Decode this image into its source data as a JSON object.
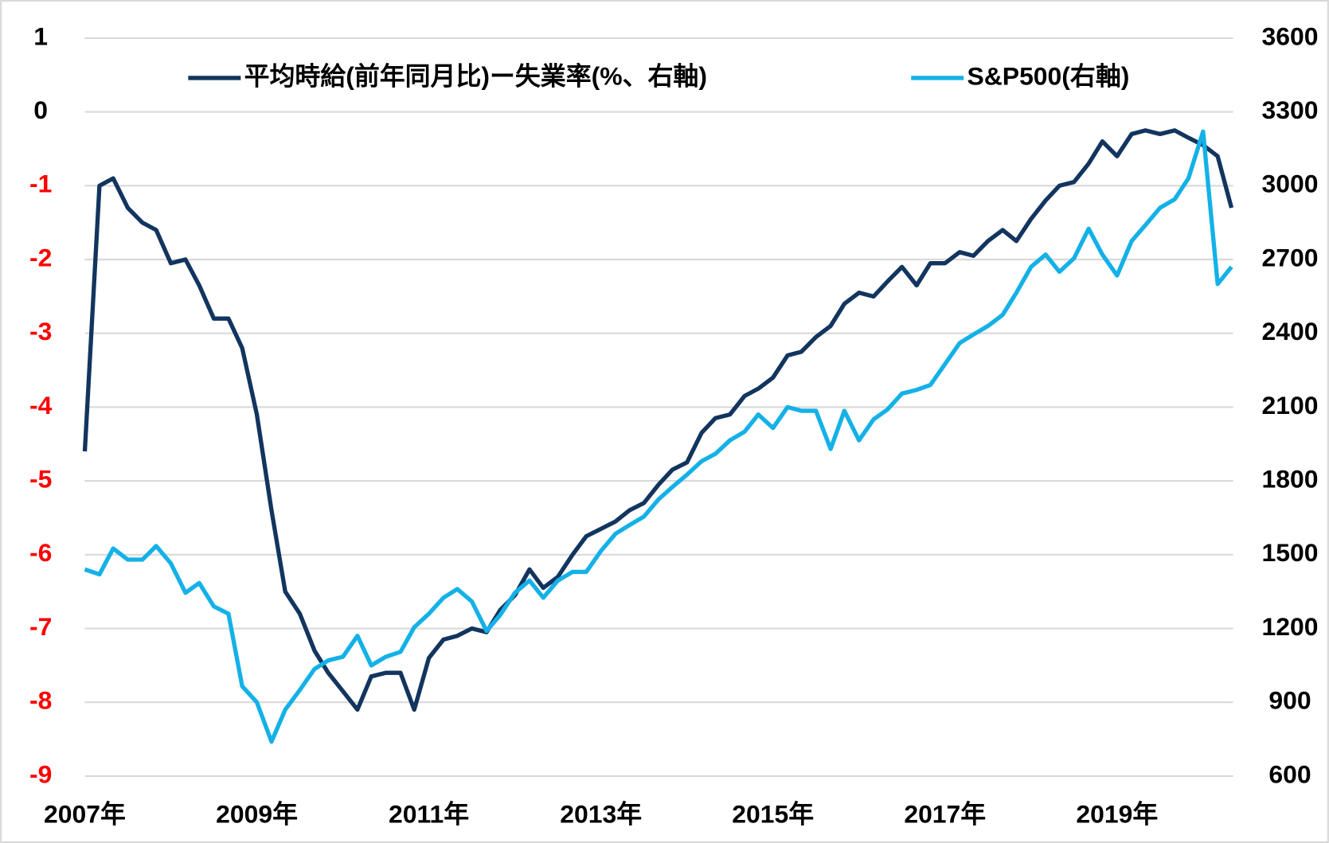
{
  "chart_data": {
    "type": "line",
    "x": [
      2007.0,
      2007.17,
      2007.33,
      2007.5,
      2007.67,
      2007.83,
      2008.0,
      2008.17,
      2008.33,
      2008.5,
      2008.67,
      2008.83,
      2009.0,
      2009.17,
      2009.33,
      2009.5,
      2009.67,
      2009.83,
      2010.0,
      2010.17,
      2010.33,
      2010.5,
      2010.67,
      2010.83,
      2011.0,
      2011.17,
      2011.33,
      2011.5,
      2011.67,
      2011.83,
      2012.0,
      2012.17,
      2012.33,
      2012.5,
      2012.67,
      2012.83,
      2013.0,
      2013.17,
      2013.33,
      2013.5,
      2013.67,
      2013.83,
      2014.0,
      2014.17,
      2014.33,
      2014.5,
      2014.67,
      2014.83,
      2015.0,
      2015.17,
      2015.33,
      2015.5,
      2015.67,
      2015.83,
      2016.0,
      2016.17,
      2016.33,
      2016.5,
      2016.67,
      2016.83,
      2017.0,
      2017.17,
      2017.33,
      2017.5,
      2017.67,
      2017.83,
      2018.0,
      2018.17,
      2018.33,
      2018.5,
      2018.67,
      2018.83,
      2019.0,
      2019.17,
      2019.33,
      2019.5,
      2019.67,
      2019.83,
      2020.0,
      2020.17,
      2020.33
    ],
    "series": [
      {
        "name": "平均時給(前年同月比)ー失業率(%、右軸)",
        "color": "#12355f",
        "values": [
          -4.6,
          -1.0,
          -0.9,
          -1.3,
          -1.5,
          -1.6,
          -2.05,
          -2.0,
          -2.35,
          -2.8,
          -2.8,
          -3.2,
          -4.1,
          -5.4,
          -6.5,
          -6.8,
          -7.3,
          -7.6,
          -7.85,
          -8.1,
          -7.65,
          -7.6,
          -7.6,
          -8.1,
          -7.4,
          -7.15,
          -7.1,
          -7.0,
          -7.05,
          -6.75,
          -6.55,
          -6.2,
          -6.45,
          -6.3,
          -6.0,
          -5.75,
          -5.65,
          -5.55,
          -5.4,
          -5.3,
          -5.05,
          -4.85,
          -4.75,
          -4.35,
          -4.15,
          -4.1,
          -3.85,
          -3.75,
          -3.6,
          -3.3,
          -3.25,
          -3.05,
          -2.9,
          -2.6,
          -2.45,
          -2.5,
          -2.3,
          -2.1,
          -2.35,
          -2.05,
          -2.05,
          -1.9,
          -1.95,
          -1.75,
          -1.6,
          -1.75,
          -1.45,
          -1.2,
          -1.0,
          -0.95,
          -0.7,
          -0.4,
          -0.6,
          -0.3,
          -0.25,
          -0.3,
          -0.25,
          -0.35,
          -0.45,
          -0.6,
          -1.3
        ]
      },
      {
        "name": "S&P500(右軸)",
        "color": "#14b1e7",
        "axis": "y2",
        "values": [
          1440,
          1420,
          1525,
          1480,
          1480,
          1535,
          1465,
          1345,
          1385,
          1290,
          1260,
          965,
          900,
          740,
          870,
          950,
          1035,
          1070,
          1085,
          1170,
          1050,
          1085,
          1105,
          1205,
          1260,
          1325,
          1360,
          1310,
          1190,
          1255,
          1345,
          1395,
          1325,
          1395,
          1430,
          1430,
          1515,
          1585,
          1620,
          1655,
          1725,
          1775,
          1825,
          1880,
          1910,
          1965,
          2000,
          2070,
          2015,
          2100,
          2085,
          2085,
          1930,
          2085,
          1965,
          2050,
          2090,
          2155,
          2170,
          2190,
          2275,
          2360,
          2395,
          2430,
          2475,
          2565,
          2670,
          2720,
          2650,
          2705,
          2825,
          2720,
          2635,
          2775,
          2840,
          2910,
          2945,
          3030,
          3220,
          2600,
          2670
        ]
      }
    ],
    "xlim": [
      2007.0,
      2020.35
    ],
    "xticks": [
      {
        "value": 2007,
        "label": "2007年"
      },
      {
        "value": 2009,
        "label": "2009年"
      },
      {
        "value": 2011,
        "label": "2011年"
      },
      {
        "value": 2013,
        "label": "2013年"
      },
      {
        "value": 2015,
        "label": "2015年"
      },
      {
        "value": 2017,
        "label": "2017年"
      },
      {
        "value": 2019,
        "label": "2019年"
      }
    ],
    "ylim": [
      -9,
      1
    ],
    "yticks": [
      1,
      0,
      -1,
      -2,
      -3,
      -4,
      -5,
      -6,
      -7,
      -8,
      -9
    ],
    "y2lim": [
      600,
      3600
    ],
    "y2ticks": [
      3600,
      3300,
      3000,
      2700,
      2400,
      2100,
      1800,
      1500,
      1200,
      900,
      600
    ],
    "negative_tick_color": "#ff0000",
    "grid": true,
    "legend": "top"
  }
}
